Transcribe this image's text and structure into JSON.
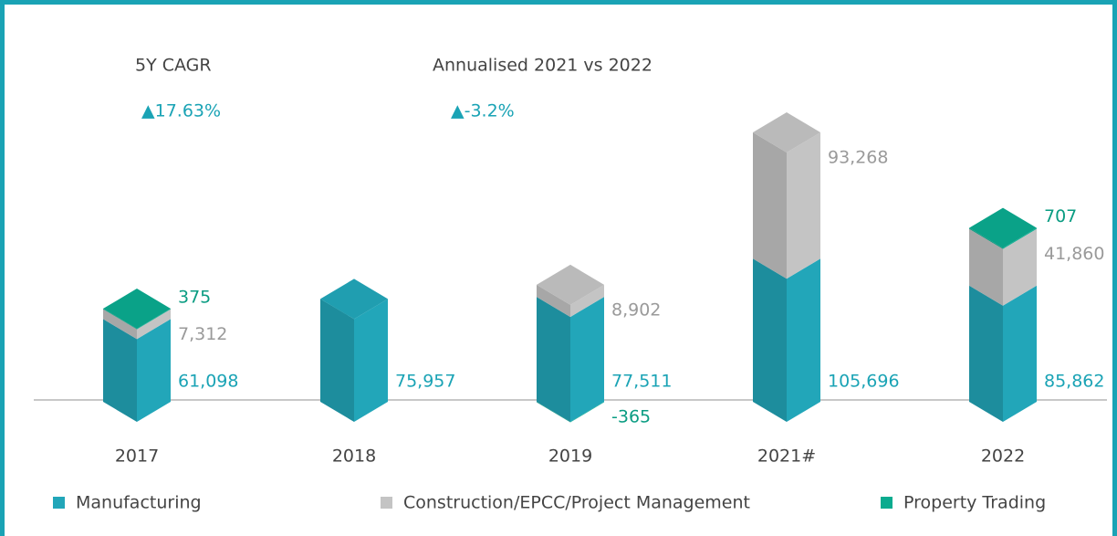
{
  "chart_data": {
    "type": "bar3d_stacked",
    "annotations": [
      {
        "label": "5Y CAGR",
        "value_text": "▲17.63%"
      },
      {
        "label": "Annualised 2021 vs 2022",
        "value_text": "▲-3.2%"
      }
    ],
    "categories": [
      "2017",
      "2018",
      "2019",
      "2021#",
      "2022"
    ],
    "series": [
      {
        "name": "Manufacturing",
        "color": "#22a6b9",
        "label_color": "#1aa3b5",
        "values": [
          61098,
          75957,
          77511,
          105696,
          85862
        ],
        "value_labels": [
          "61,098",
          "75,957",
          "77,511",
          "105,696",
          "85,862"
        ]
      },
      {
        "name": "Construction/EPCC/Project Management",
        "color": "#c4c4c4",
        "label_color": "#9a9a9a",
        "values": [
          7312,
          null,
          8902,
          93268,
          41860
        ],
        "value_labels": [
          "7,312",
          null,
          "8,902",
          "93,268",
          "41,860"
        ]
      },
      {
        "name": "Property Trading",
        "color": "#0aab8f",
        "label_color": "#0a9c82",
        "values": [
          375,
          null,
          -365,
          null,
          707
        ],
        "value_labels": [
          "375",
          null,
          "-365",
          null,
          "707"
        ]
      }
    ]
  }
}
